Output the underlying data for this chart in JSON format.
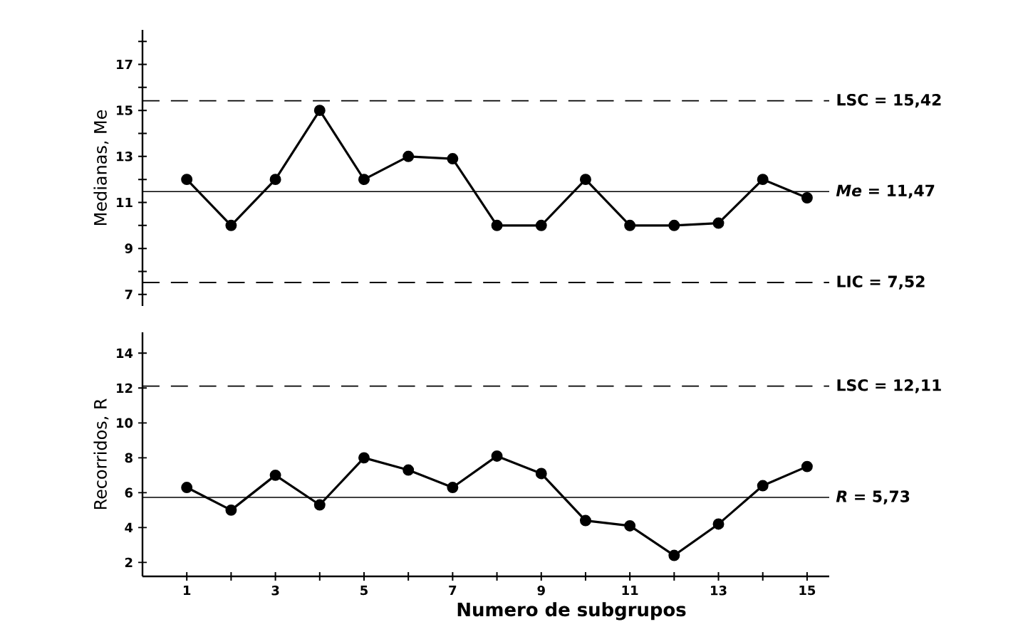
{
  "chart_data": [
    {
      "type": "line",
      "ylabel": "Medianas, Me",
      "x": [
        1,
        2,
        3,
        4,
        5,
        6,
        7,
        8,
        9,
        10,
        11,
        12,
        13,
        14,
        15
      ],
      "series": [
        {
          "color": "#000000",
          "values": [
            12,
            10,
            12,
            15,
            12,
            13,
            12.9,
            10,
            10,
            12,
            10,
            10,
            10.1,
            12,
            11.2
          ]
        }
      ],
      "xlim": [
        0,
        15.5
      ],
      "ylim": [
        6.5,
        18.5
      ],
      "yticks": [
        7,
        {
          "value": 8,
          "label": null
        },
        9,
        {
          "value": 10,
          "label": null
        },
        11,
        {
          "value": 12,
          "label": null
        },
        13,
        {
          "value": 14,
          "label": null
        },
        15,
        {
          "value": 16,
          "label": null
        },
        17,
        {
          "value": 18,
          "label": null
        }
      ],
      "tick_labels": "y",
      "marker": "circle",
      "line_style": "solid",
      "grid": false,
      "ref_lines": [
        {
          "axis": "y",
          "value": 15.42,
          "label": "LSC = 15,42",
          "line_style": "dashed",
          "color": "#000000"
        },
        {
          "axis": "y",
          "value": 11.47,
          "label": "*Me* = 11,47",
          "line_style": "solid",
          "color": "#000000"
        },
        {
          "axis": "y",
          "value": 7.52,
          "label": "LIC = 7,52",
          "line_style": "dashed",
          "color": "#000000"
        }
      ]
    },
    {
      "type": "line",
      "ylabel": "Recorridos, R",
      "xlabel": "Numero de subgrupos",
      "x": [
        1,
        2,
        3,
        4,
        5,
        6,
        7,
        8,
        9,
        10,
        11,
        12,
        13,
        14,
        15
      ],
      "series": [
        {
          "color": "#000000",
          "values": [
            6.3,
            5,
            7,
            5.3,
            8,
            7.3,
            6.3,
            8.1,
            7.1,
            4.4,
            4.1,
            2.4,
            4.2,
            6.4,
            7.5
          ]
        }
      ],
      "xlim": [
        0,
        15.5
      ],
      "ylim": [
        1.2,
        15.2
      ],
      "xticks": [
        1,
        {
          "value": 2,
          "label": null
        },
        3,
        {
          "value": 4,
          "label": null
        },
        5,
        {
          "value": 6,
          "label": null
        },
        7,
        {
          "value": 8,
          "label": null
        },
        9,
        {
          "value": 10,
          "label": null
        },
        11,
        {
          "value": 12,
          "label": null
        },
        13,
        {
          "value": 14,
          "label": null
        },
        15
      ],
      "yticks": [
        2,
        4,
        6,
        8,
        10,
        12,
        14
      ],
      "marker": "circle",
      "line_style": "solid",
      "grid": false,
      "ref_lines": [
        {
          "axis": "y",
          "value": 12.11,
          "label": "LSC = 12,11",
          "line_style": "dashed",
          "color": "#000000"
        },
        {
          "axis": "y",
          "value": 5.73,
          "label": "*R* = 5,73",
          "line_style": "solid",
          "color": "#000000"
        }
      ]
    }
  ]
}
